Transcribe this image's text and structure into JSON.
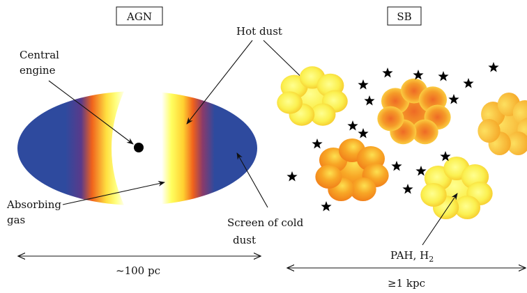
{
  "diagram": {
    "agn": {
      "box_label": "AGN",
      "central_engine": [
        "Central",
        "engine"
      ],
      "absorbing_gas": [
        "Absorbing",
        "gas"
      ],
      "screen_cold_dust": [
        "Screen of cold",
        "dust"
      ],
      "scale": "~100 pc"
    },
    "hot_dust_label": "Hot dust",
    "sb": {
      "box_label": "SB",
      "pah_label": "PAH, H",
      "pah_subscript": "2",
      "scale": "≥1 kpc"
    },
    "colors": {
      "torus_blue": "#2e4a9e",
      "torus_purple": "#5a3a8a",
      "torus_orange": "#f0621c",
      "torus_yellow": "#ffff60",
      "cloud_yellow": "#fafa60",
      "cloud_orange": "#f39a1c"
    }
  }
}
